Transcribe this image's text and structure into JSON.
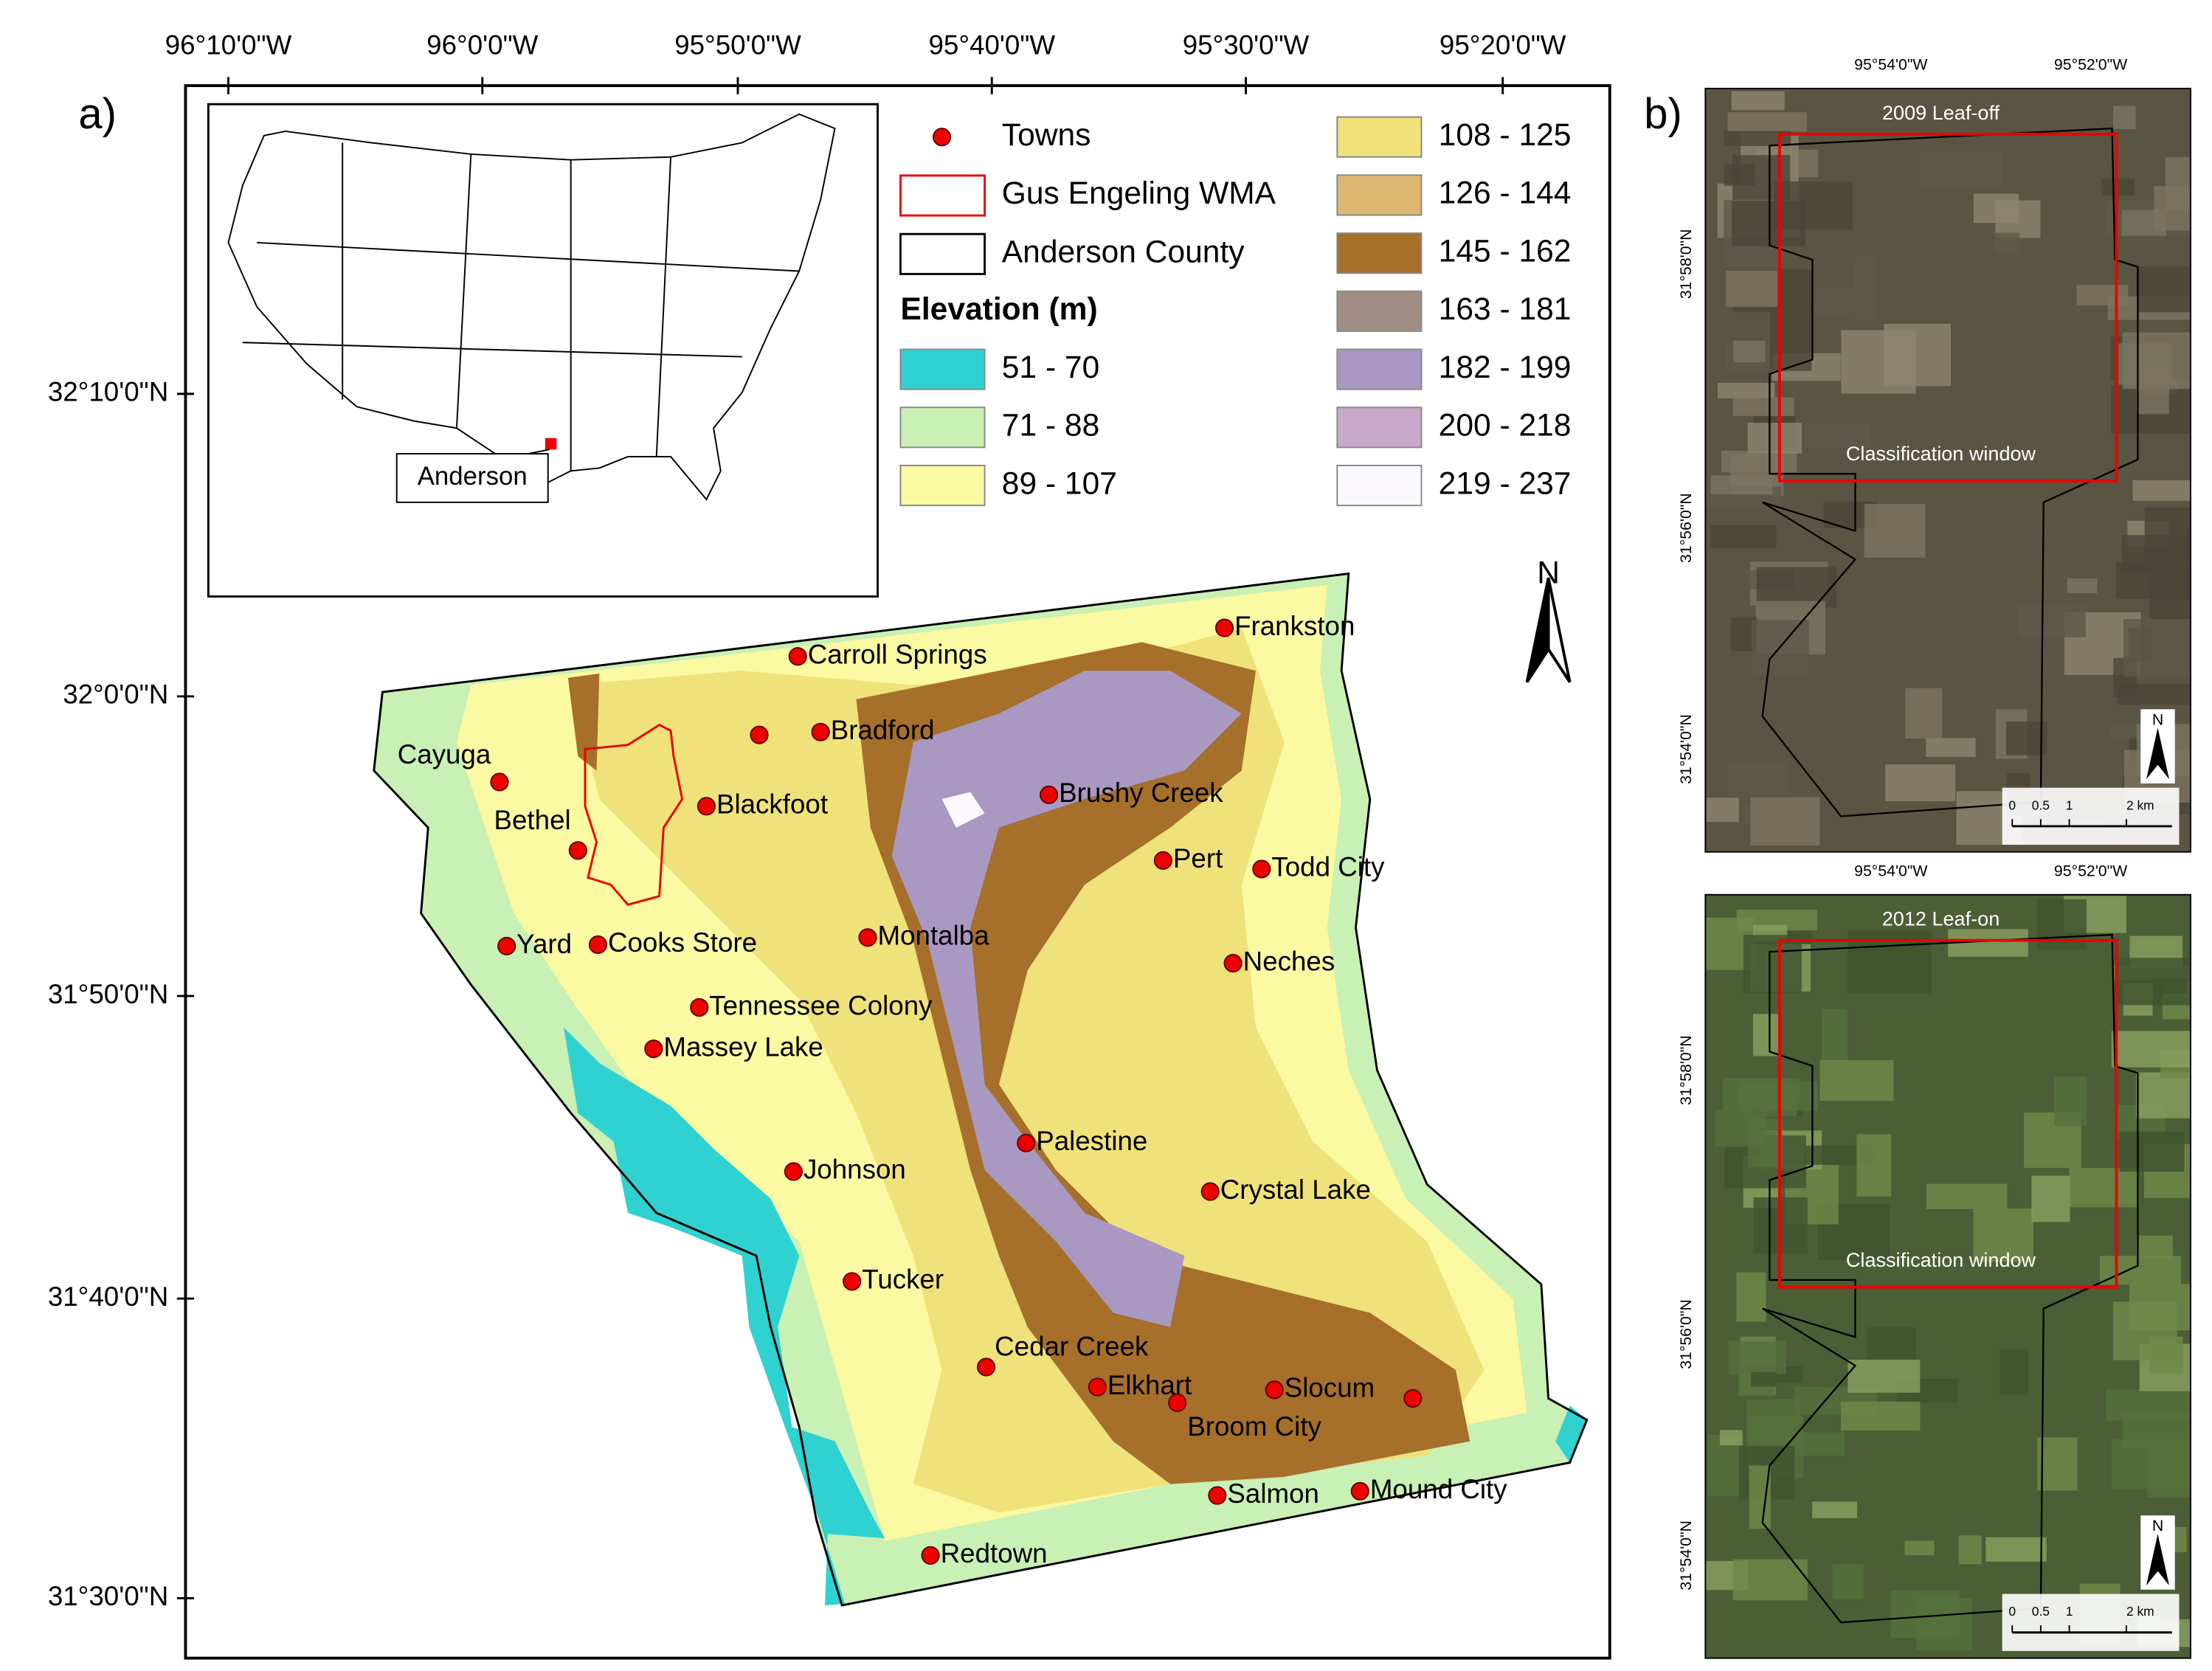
{
  "panel_a": {
    "label": "a)",
    "longitude_labels": [
      "96°10'0\"W",
      "96°0'0\"W",
      "95°50'0\"W",
      "95°40'0\"W",
      "95°30'0\"W",
      "95°20'0\"W"
    ],
    "latitude_labels": [
      "32°10'0\"N",
      "32°0'0\"N",
      "31°50'0\"N",
      "31°40'0\"N",
      "31°30'0\"N"
    ],
    "inset_label": "Anderson",
    "north": "N",
    "legend": {
      "towns": "Towns",
      "wma": "Gus Engeling WMA",
      "county": "Anderson  County",
      "elevation_title": "Elevation (m)",
      "classes": [
        {
          "label": "51 - 70",
          "color": "#2fd2d0"
        },
        {
          "label": "71 - 88",
          "color": "#c9f0b5"
        },
        {
          "label": "89 - 107",
          "color": "#fbf9a2"
        },
        {
          "label": "108 - 125",
          "color": "#efe27a"
        },
        {
          "label": "126 - 144",
          "color": "#dcb872"
        },
        {
          "label": "145 - 162",
          "color": "#a66f2a"
        },
        {
          "label": "163 - 181",
          "color": "#a08d84"
        },
        {
          "label": "182 - 199",
          "color": "#a998c2"
        },
        {
          "label": "200 - 218",
          "color": "#c9a9ca"
        },
        {
          "label": "219 - 237",
          "color": "#fbf9fd"
        }
      ]
    },
    "towns": [
      "Carroll Springs",
      "Frankston",
      "Bradford",
      "Cayuga",
      "Bethel",
      "Blackfoot",
      "Brushy Creek",
      "Pert",
      "Todd City",
      "Yard",
      "Cooks Store",
      "Montalba",
      "Neches",
      "Tennessee Colony",
      "Massey Lake",
      "Palestine",
      "Johnson",
      "Crystal Lake",
      "Tucker",
      "Cedar Creek",
      "Elkhart",
      "Slocum",
      "Broom City",
      "Salmon",
      "Mound City",
      "Redtown"
    ]
  },
  "panel_b": {
    "label": "b)",
    "images": [
      {
        "title": "2009 Leaf-off",
        "window": "Classification window",
        "longitude_labels": [
          "95°54'0\"W",
          "95°52'0\"W"
        ],
        "latitude_labels": [
          "31°58'0\"N",
          "31°56'0\"N",
          "31°54'0\"N"
        ],
        "scale_labels": [
          "0",
          "0.5",
          "1",
          "2 km"
        ],
        "north": "N"
      },
      {
        "title": "2012 Leaf-on",
        "window": "Classification window",
        "longitude_labels": [
          "95°54'0\"W",
          "95°52'0\"W"
        ],
        "latitude_labels": [
          "31°58'0\"N",
          "31°56'0\"N",
          "31°54'0\"N"
        ],
        "scale_labels": [
          "0",
          "0.5",
          "1",
          "2 km"
        ],
        "north": "N"
      }
    ]
  }
}
